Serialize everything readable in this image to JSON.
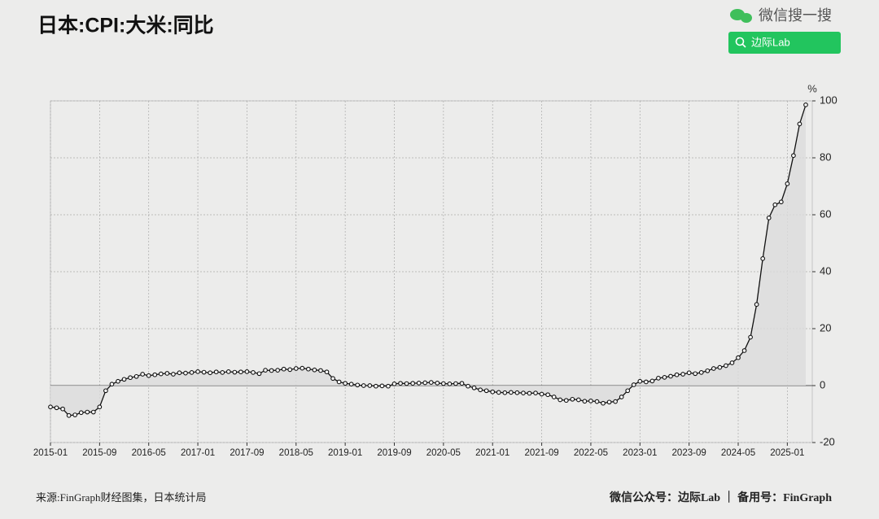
{
  "header": {
    "search_brand": "微信搜一搜",
    "search_query": "边际Lab"
  },
  "chart_data": {
    "type": "line",
    "title": "日本:CPI:大米:同比",
    "y_unit": "%",
    "categories": [
      "2015-01",
      null,
      null,
      null,
      null,
      null,
      null,
      null,
      "2015-09",
      null,
      null,
      null,
      null,
      null,
      null,
      null,
      "2016-05",
      null,
      null,
      null,
      null,
      null,
      null,
      null,
      "2017-01",
      null,
      null,
      null,
      null,
      null,
      null,
      null,
      "2017-09",
      null,
      null,
      null,
      null,
      null,
      null,
      null,
      "2018-05",
      null,
      null,
      null,
      null,
      null,
      null,
      null,
      "2019-01",
      null,
      null,
      null,
      null,
      null,
      null,
      null,
      "2019-09",
      null,
      null,
      null,
      null,
      null,
      null,
      null,
      "2020-05",
      null,
      null,
      null,
      null,
      null,
      null,
      null,
      "2021-01",
      null,
      null,
      null,
      null,
      null,
      null,
      null,
      "2021-09",
      null,
      null,
      null,
      null,
      null,
      null,
      null,
      "2022-05",
      null,
      null,
      null,
      null,
      null,
      null,
      null,
      "2023-01",
      null,
      null,
      null,
      null,
      null,
      null,
      null,
      "2023-09",
      null,
      null,
      null,
      null,
      null,
      null,
      null,
      "2024-05",
      null,
      null,
      null,
      null,
      null,
      null,
      null,
      "2025-01",
      null,
      null,
      null
    ],
    "series": [
      {
        "name": "日本:CPI:大米:同比",
        "color": "#111111",
        "values": [
          -7.5,
          -7.8,
          -8.2,
          -10.5,
          -10.3,
          -9.5,
          -9.3,
          -9.3,
          -7.5,
          -1.8,
          0.5,
          1.5,
          2.2,
          2.8,
          3.2,
          4.0,
          3.5,
          3.8,
          4.1,
          4.3,
          4.0,
          4.5,
          4.4,
          4.6,
          4.9,
          4.7,
          4.5,
          4.8,
          4.6,
          4.9,
          4.7,
          4.8,
          4.9,
          4.6,
          4.2,
          5.4,
          5.3,
          5.4,
          5.8,
          5.6,
          6.0,
          6.1,
          5.8,
          5.5,
          5.3,
          4.8,
          2.5,
          1.3,
          0.8,
          0.5,
          0.2,
          0,
          0,
          -0.2,
          -0.1,
          -0.2,
          0.6,
          0.8,
          0.7,
          0.8,
          0.9,
          1.0,
          1.1,
          0.9,
          0.7,
          0.6,
          0.7,
          0.8,
          -0.2,
          -0.8,
          -1.5,
          -1.8,
          -2.2,
          -2.4,
          -2.5,
          -2.4,
          -2.5,
          -2.6,
          -2.7,
          -2.6,
          -3.0,
          -3.2,
          -4.0,
          -5.0,
          -5.2,
          -4.8,
          -5.0,
          -5.5,
          -5.4,
          -5.6,
          -6.2,
          -5.8,
          -5.6,
          -4.0,
          -1.8,
          0.3,
          1.5,
          1.3,
          1.6,
          2.6,
          2.9,
          3.3,
          3.8,
          4.0,
          4.5,
          4.2,
          4.6,
          5.2,
          6.0,
          6.4,
          7.0,
          8.0,
          9.8,
          12.3,
          17.0,
          28.5,
          44.6,
          58.9,
          63.5,
          64.5,
          70.9,
          80.8,
          91.9,
          98.6
        ]
      }
    ],
    "ylim": [
      -20,
      100
    ],
    "yticks": [
      -20,
      0,
      20,
      40,
      60,
      80,
      100
    ],
    "grid": true,
    "area_fill": "#dcdcdc",
    "source": "来源:FinGraph财经图集，日本统计局",
    "credit": "微信公众号：边际Lab ｜ 备用号：FinGraph"
  }
}
